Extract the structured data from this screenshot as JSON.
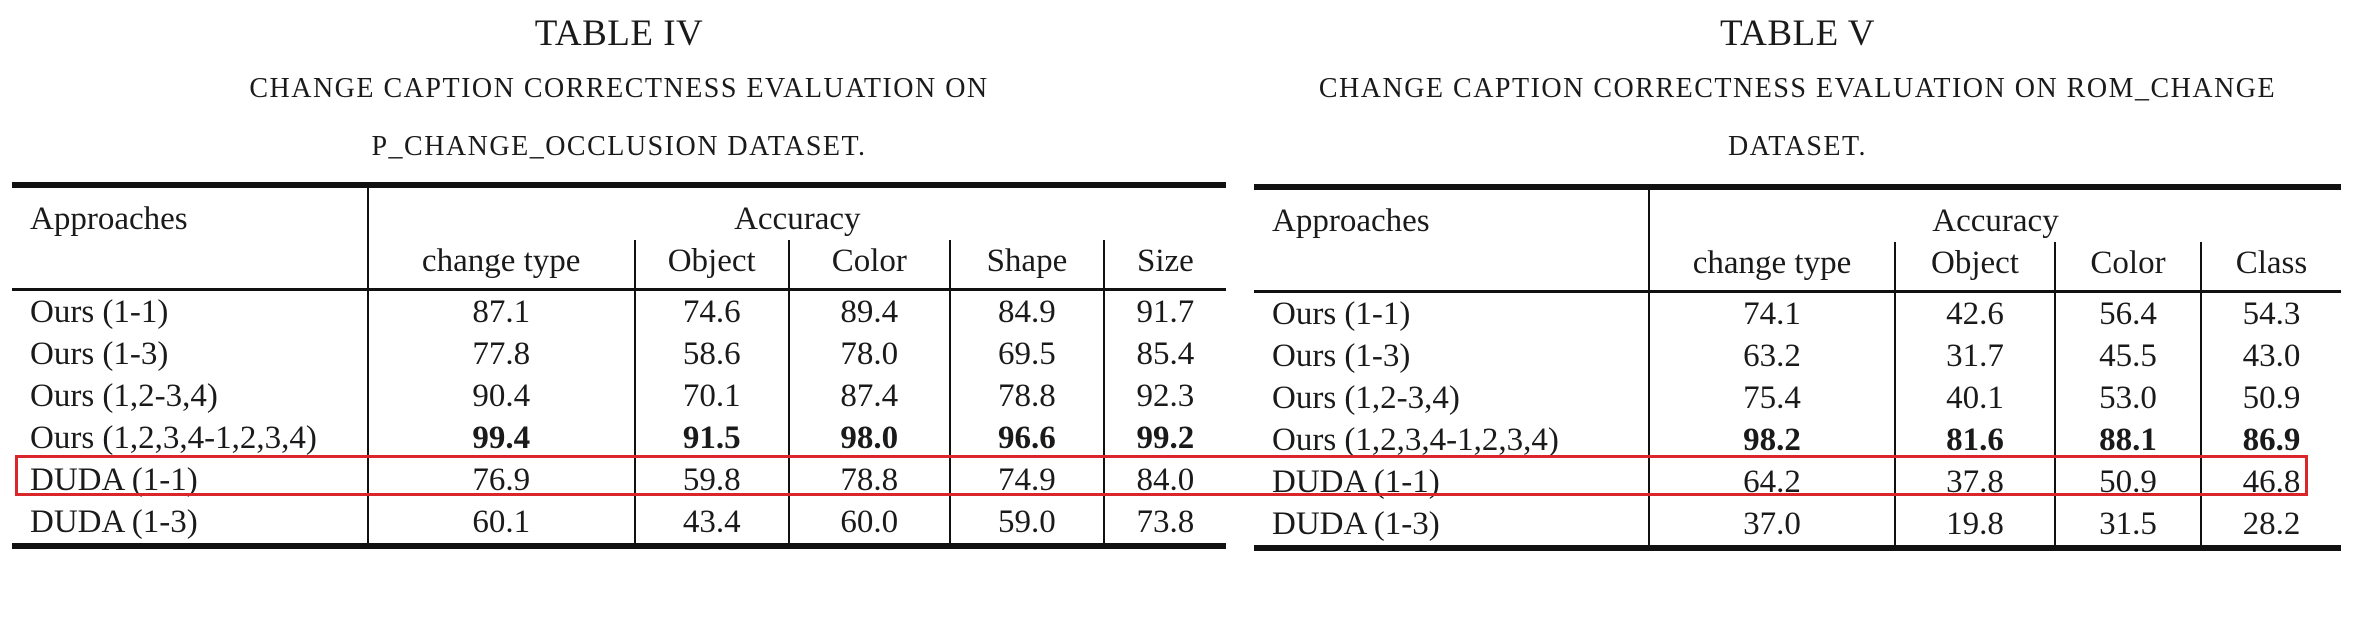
{
  "table_iv": {
    "label": "TABLE IV",
    "caption_line1": "Change caption correctness evaluation on",
    "caption_line2": "P_change_occlusion dataset.",
    "header_approaches": "Approaches",
    "header_accuracy": "Accuracy",
    "columns": [
      "change type",
      "Object",
      "Color",
      "Shape",
      "Size"
    ],
    "rows": [
      {
        "approach": "Ours (1-1)",
        "values": [
          "87.1",
          "74.6",
          "89.4",
          "84.9",
          "91.7"
        ]
      },
      {
        "approach": "Ours (1-3)",
        "values": [
          "77.8",
          "58.6",
          "78.0",
          "69.5",
          "85.4"
        ]
      },
      {
        "approach": "Ours (1,2-3,4)",
        "values": [
          "90.4",
          "70.1",
          "87.4",
          "78.8",
          "92.3"
        ]
      },
      {
        "approach": "Ours (1,2,3,4-1,2,3,4)",
        "values": [
          "99.4",
          "91.5",
          "98.0",
          "96.6",
          "99.2"
        ]
      },
      {
        "approach": "DUDA (1-1)",
        "values": [
          "76.9",
          "59.8",
          "78.8",
          "74.9",
          "84.0"
        ]
      },
      {
        "approach": "DUDA (1-3)",
        "values": [
          "60.1",
          "43.4",
          "60.0",
          "59.0",
          "73.8"
        ]
      }
    ]
  },
  "table_v": {
    "label": "TABLE V",
    "caption_line1": "Change caption correctness evaluation on ROM_change",
    "caption_line2": "dataset.",
    "header_approaches": "Approaches",
    "header_accuracy": "Accuracy",
    "columns": [
      "change type",
      "Object",
      "Color",
      "Class"
    ],
    "rows": [
      {
        "approach": "Ours (1-1)",
        "values": [
          "74.1",
          "42.6",
          "56.4",
          "54.3"
        ]
      },
      {
        "approach": "Ours (1-3)",
        "values": [
          "63.2",
          "31.7",
          "45.5",
          "43.0"
        ]
      },
      {
        "approach": "Ours (1,2-3,4)",
        "values": [
          "75.4",
          "40.1",
          "53.0",
          "50.9"
        ]
      },
      {
        "approach": "Ours (1,2,3,4-1,2,3,4)",
        "values": [
          "98.2",
          "81.6",
          "88.1",
          "86.9"
        ]
      },
      {
        "approach": "DUDA (1-1)",
        "values": [
          "64.2",
          "37.8",
          "50.9",
          "46.8"
        ]
      },
      {
        "approach": "DUDA (1-3)",
        "values": [
          "37.0",
          "19.8",
          "31.5",
          "28.2"
        ]
      }
    ]
  },
  "highlight": {
    "row_index": 3,
    "color": "#d9262b"
  }
}
